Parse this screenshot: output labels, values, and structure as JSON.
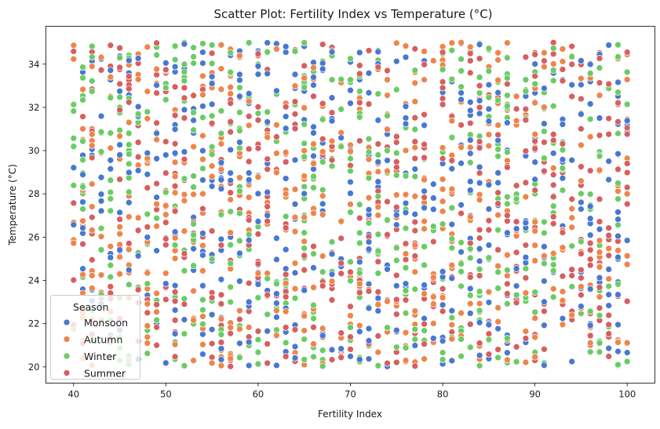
{
  "chart_data": {
    "type": "scatter",
    "title": "Scatter Plot: Fertility Index vs Temperature (°C)",
    "xlabel": "Fertility Index",
    "ylabel": "Temperature (°C)",
    "xlim": [
      37,
      103
    ],
    "ylim": [
      19.25,
      35.75
    ],
    "xticks": [
      40,
      50,
      60,
      70,
      80,
      90,
      100
    ],
    "yticks": [
      20,
      22,
      24,
      26,
      28,
      30,
      32,
      34
    ],
    "grid": false,
    "legend": {
      "title": "Season",
      "placement": "lower-left"
    },
    "x_is_integer": true,
    "series": [
      {
        "name": "Monsoon",
        "color": "#4878d0",
        "count": 500
      },
      {
        "name": "Autumn",
        "color": "#ee854a",
        "count": 500
      },
      {
        "name": "Winter",
        "color": "#6acc64",
        "count": 500
      },
      {
        "name": "Summer",
        "color": "#d65f5f",
        "count": 500
      }
    ],
    "x_range": [
      40,
      100
    ],
    "y_range": [
      20,
      35
    ]
  }
}
